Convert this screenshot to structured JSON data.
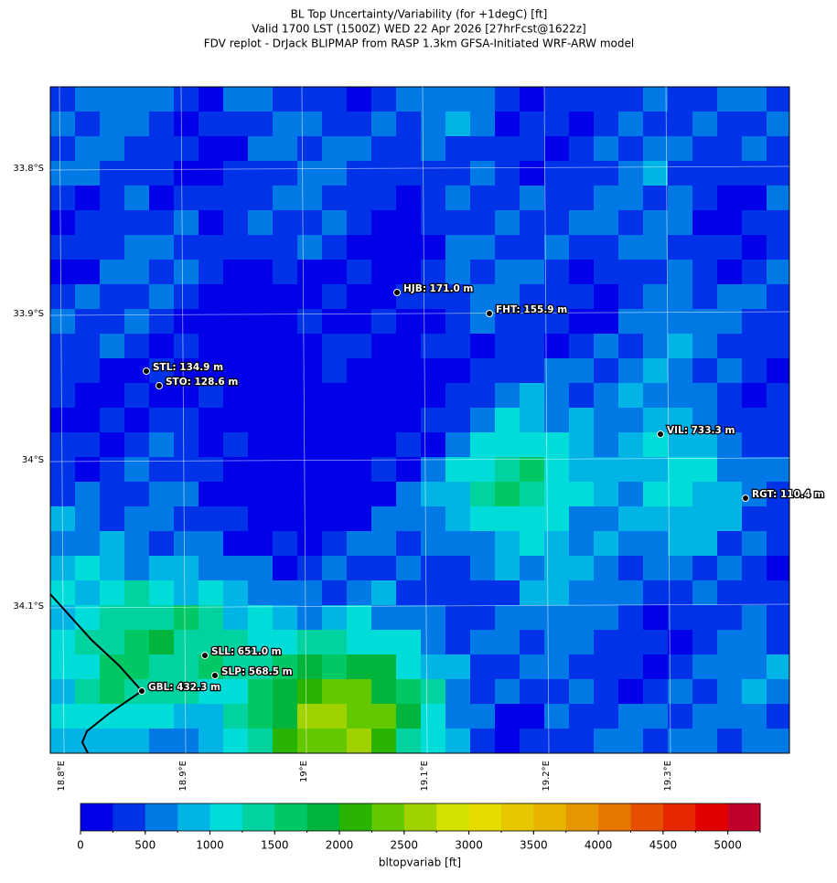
{
  "title": [
    "BL Top Uncertainty/Variability (for +1degC) [ft]",
    "Valid 1700 LST (1500Z) WED 22 Apr 2026 [27hrFcst@1622z]",
    "FDV replot - DrJack BLIPMAP from RASP 1.3km GFSA-Initiated WRF-ARW model"
  ],
  "map": {
    "lat_labels": [
      "33.8°S",
      "33.9°S",
      "34°S",
      "34.1°S"
    ],
    "lon_labels": [
      "18.8°E",
      "18.9°E",
      "19°E",
      "19.1°E",
      "19.2°E",
      "19.3°E"
    ],
    "stations": [
      {
        "label": "HJB: 171.0 m"
      },
      {
        "label": "FHT: 155.9 m"
      },
      {
        "label": "STL: 134.9 m"
      },
      {
        "label": "STO: 128.6 m"
      },
      {
        "label": "VIL: 733.3 m"
      },
      {
        "label": "RGT: 110.4 m"
      },
      {
        "label": "SLL: 651.0 m"
      },
      {
        "label": "SLP: 568.5 m"
      },
      {
        "label": "GBL: 432.3 m"
      }
    ]
  },
  "colorbar": {
    "label": "bltopvariab [ft]",
    "lim": [
      0,
      5250
    ],
    "ticks": [
      0,
      500,
      1000,
      1500,
      2000,
      2500,
      3000,
      3500,
      4000,
      4500,
      5000
    ],
    "colors": [
      "#0000e8",
      "#0032e8",
      "#0078e6",
      "#00b4e6",
      "#00dcd8",
      "#00d2a0",
      "#00c864",
      "#00b43c",
      "#28b400",
      "#64c800",
      "#a0d200",
      "#d2e100",
      "#e6dc00",
      "#e6c800",
      "#e6b400",
      "#e69600",
      "#e67800",
      "#e65000",
      "#e62800",
      "#e00000",
      "#c0002a"
    ]
  }
}
